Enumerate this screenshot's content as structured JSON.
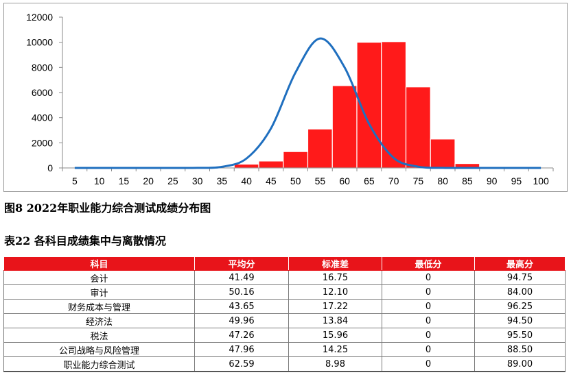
{
  "figure": {
    "caption": "图8  2022年职业能力综合测试成绩分布图",
    "chart_data": {
      "type": "bar",
      "categories": [
        "5",
        "10",
        "15",
        "20",
        "25",
        "30",
        "35",
        "40",
        "45",
        "50",
        "55",
        "60",
        "65",
        "70",
        "75",
        "80",
        "85",
        "90",
        "95",
        "100"
      ],
      "series": [
        {
          "values": [
            0,
            0,
            0,
            0,
            0,
            0,
            50,
            300,
            550,
            1300,
            3100,
            6550,
            10000,
            10050,
            6450,
            2300,
            350,
            0,
            0,
            0
          ],
          "color": "#ff1a1a"
        },
        {
          "type": "line",
          "values": [
            0,
            0,
            0,
            0,
            0,
            5,
            90,
            750,
            3150,
            7600,
            10300,
            8000,
            3500,
            800,
            100,
            5,
            0,
            0,
            0,
            0
          ],
          "color": "#1f6fbf"
        }
      ],
      "ylim": [
        0,
        12000
      ],
      "yticks": [
        0,
        2000,
        4000,
        6000,
        8000,
        10000,
        12000
      ],
      "grid": false,
      "legend": "none"
    }
  },
  "table": {
    "caption": "表22  各科目成绩集中与离散情况",
    "headers": [
      "科目",
      "平均分",
      "标准差",
      "最低分",
      "最高分"
    ],
    "rows": [
      [
        "会计",
        "41.49",
        "16.75",
        "0",
        "94.75"
      ],
      [
        "审计",
        "50.16",
        "12.10",
        "0",
        "84.00"
      ],
      [
        "财务成本与管理",
        "43.65",
        "17.22",
        "0",
        "96.25"
      ],
      [
        "经济法",
        "49.96",
        "13.84",
        "0",
        "94.50"
      ],
      [
        "税法",
        "47.26",
        "15.96",
        "0",
        "95.50"
      ],
      [
        "公司战略与风险管理",
        "47.96",
        "14.25",
        "0",
        "88.50"
      ],
      [
        "职业能力综合测试",
        "62.59",
        "8.98",
        "0",
        "89.00"
      ]
    ],
    "header_color": "#e8141a"
  }
}
